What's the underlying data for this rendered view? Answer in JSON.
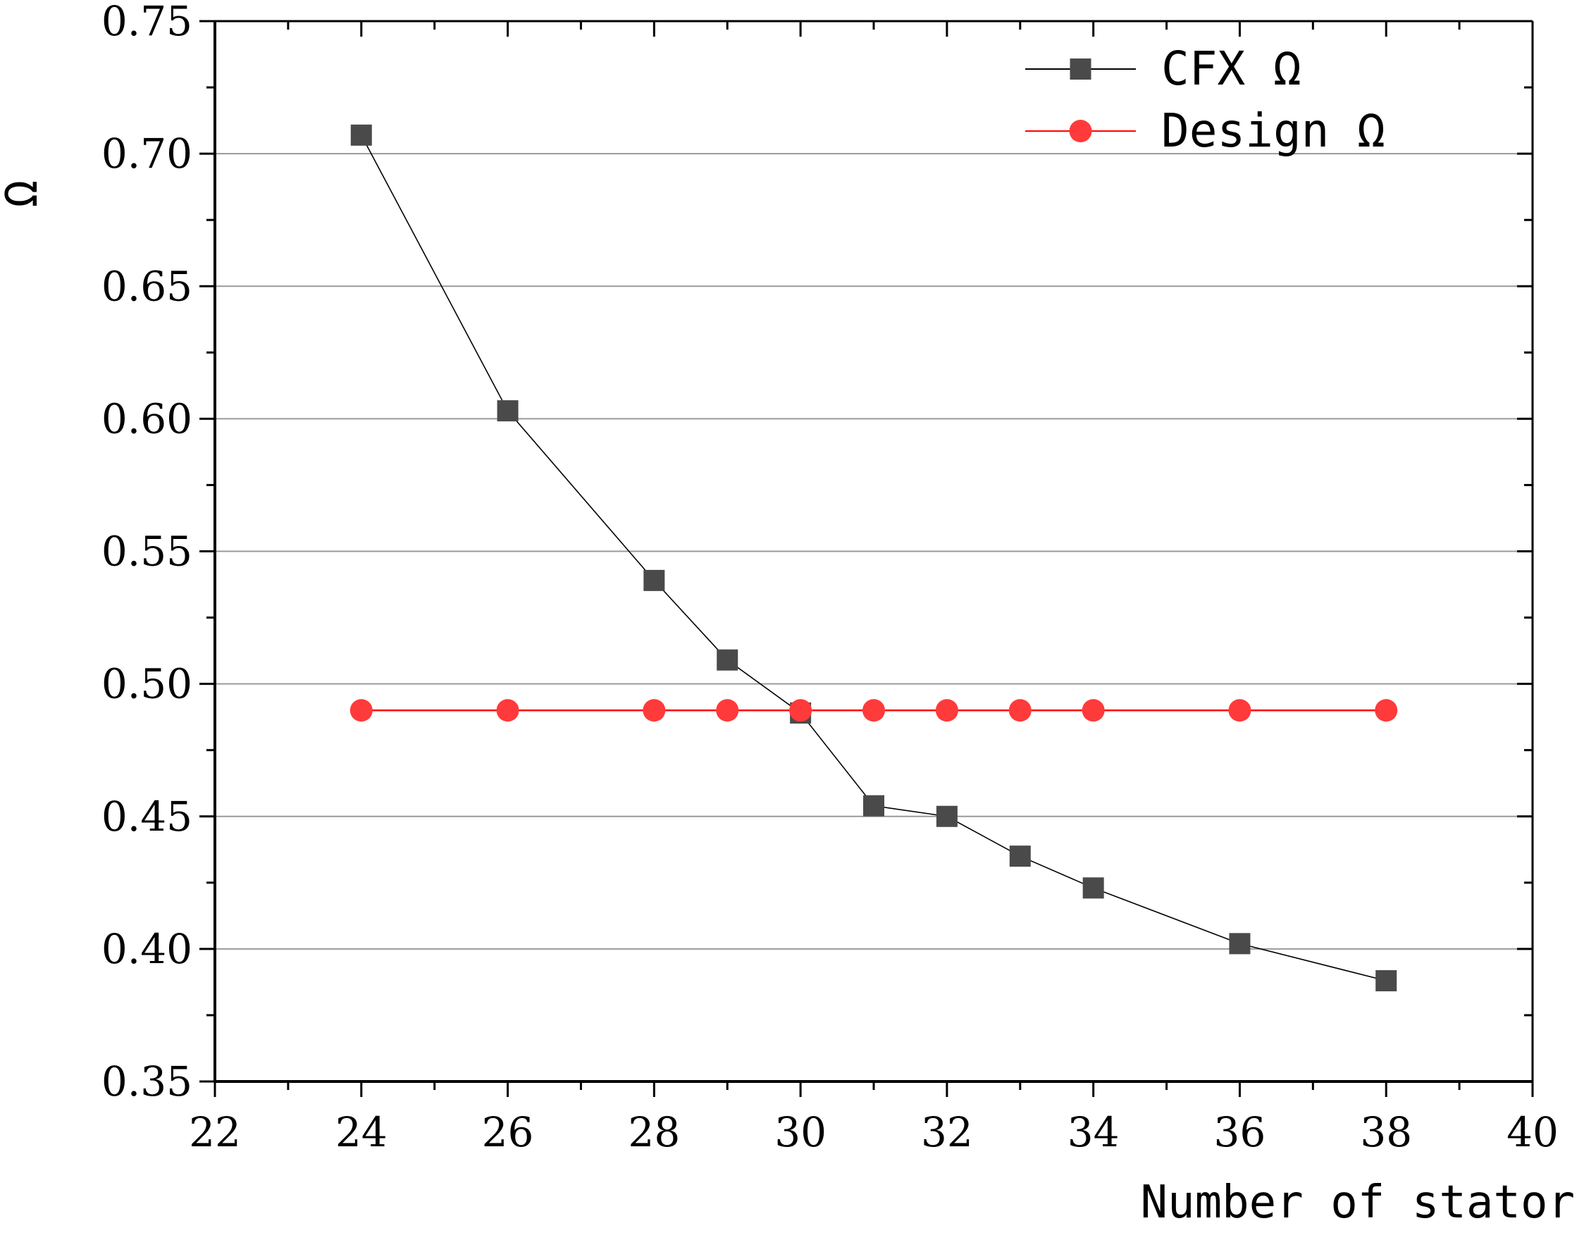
{
  "chart_data": {
    "type": "line",
    "xlabel": "Number of stator",
    "ylabel": "Ω",
    "xlim": [
      22,
      40
    ],
    "ylim": [
      0.35,
      0.75
    ],
    "xticks": [
      "22",
      "24",
      "26",
      "28",
      "30",
      "32",
      "34",
      "36",
      "38",
      "40"
    ],
    "yticks": [
      "0.35",
      "0.40",
      "0.45",
      "0.50",
      "0.55",
      "0.60",
      "0.65",
      "0.70",
      "0.75"
    ],
    "grid": "horizontal",
    "legend_position": "top-right",
    "series": [
      {
        "name": "CFX Ω",
        "legend_label": "CFX  Ω",
        "color": "#4a4a4a",
        "line_color": "#000000",
        "marker": "square",
        "x": [
          24,
          26,
          28,
          29,
          30,
          31,
          32,
          33,
          34,
          36,
          38
        ],
        "values": [
          0.707,
          0.603,
          0.539,
          0.509,
          0.489,
          0.454,
          0.45,
          0.435,
          0.423,
          0.402,
          0.388
        ]
      },
      {
        "name": "Design Ω",
        "legend_label": "Design  Ω",
        "color": "#ff3a3a",
        "line_color": "#ff0000",
        "marker": "circle",
        "x": [
          24,
          26,
          28,
          29,
          30,
          31,
          32,
          33,
          34,
          36,
          38
        ],
        "values": [
          0.49,
          0.49,
          0.49,
          0.49,
          0.49,
          0.49,
          0.49,
          0.49,
          0.49,
          0.49,
          0.49
        ]
      }
    ]
  }
}
